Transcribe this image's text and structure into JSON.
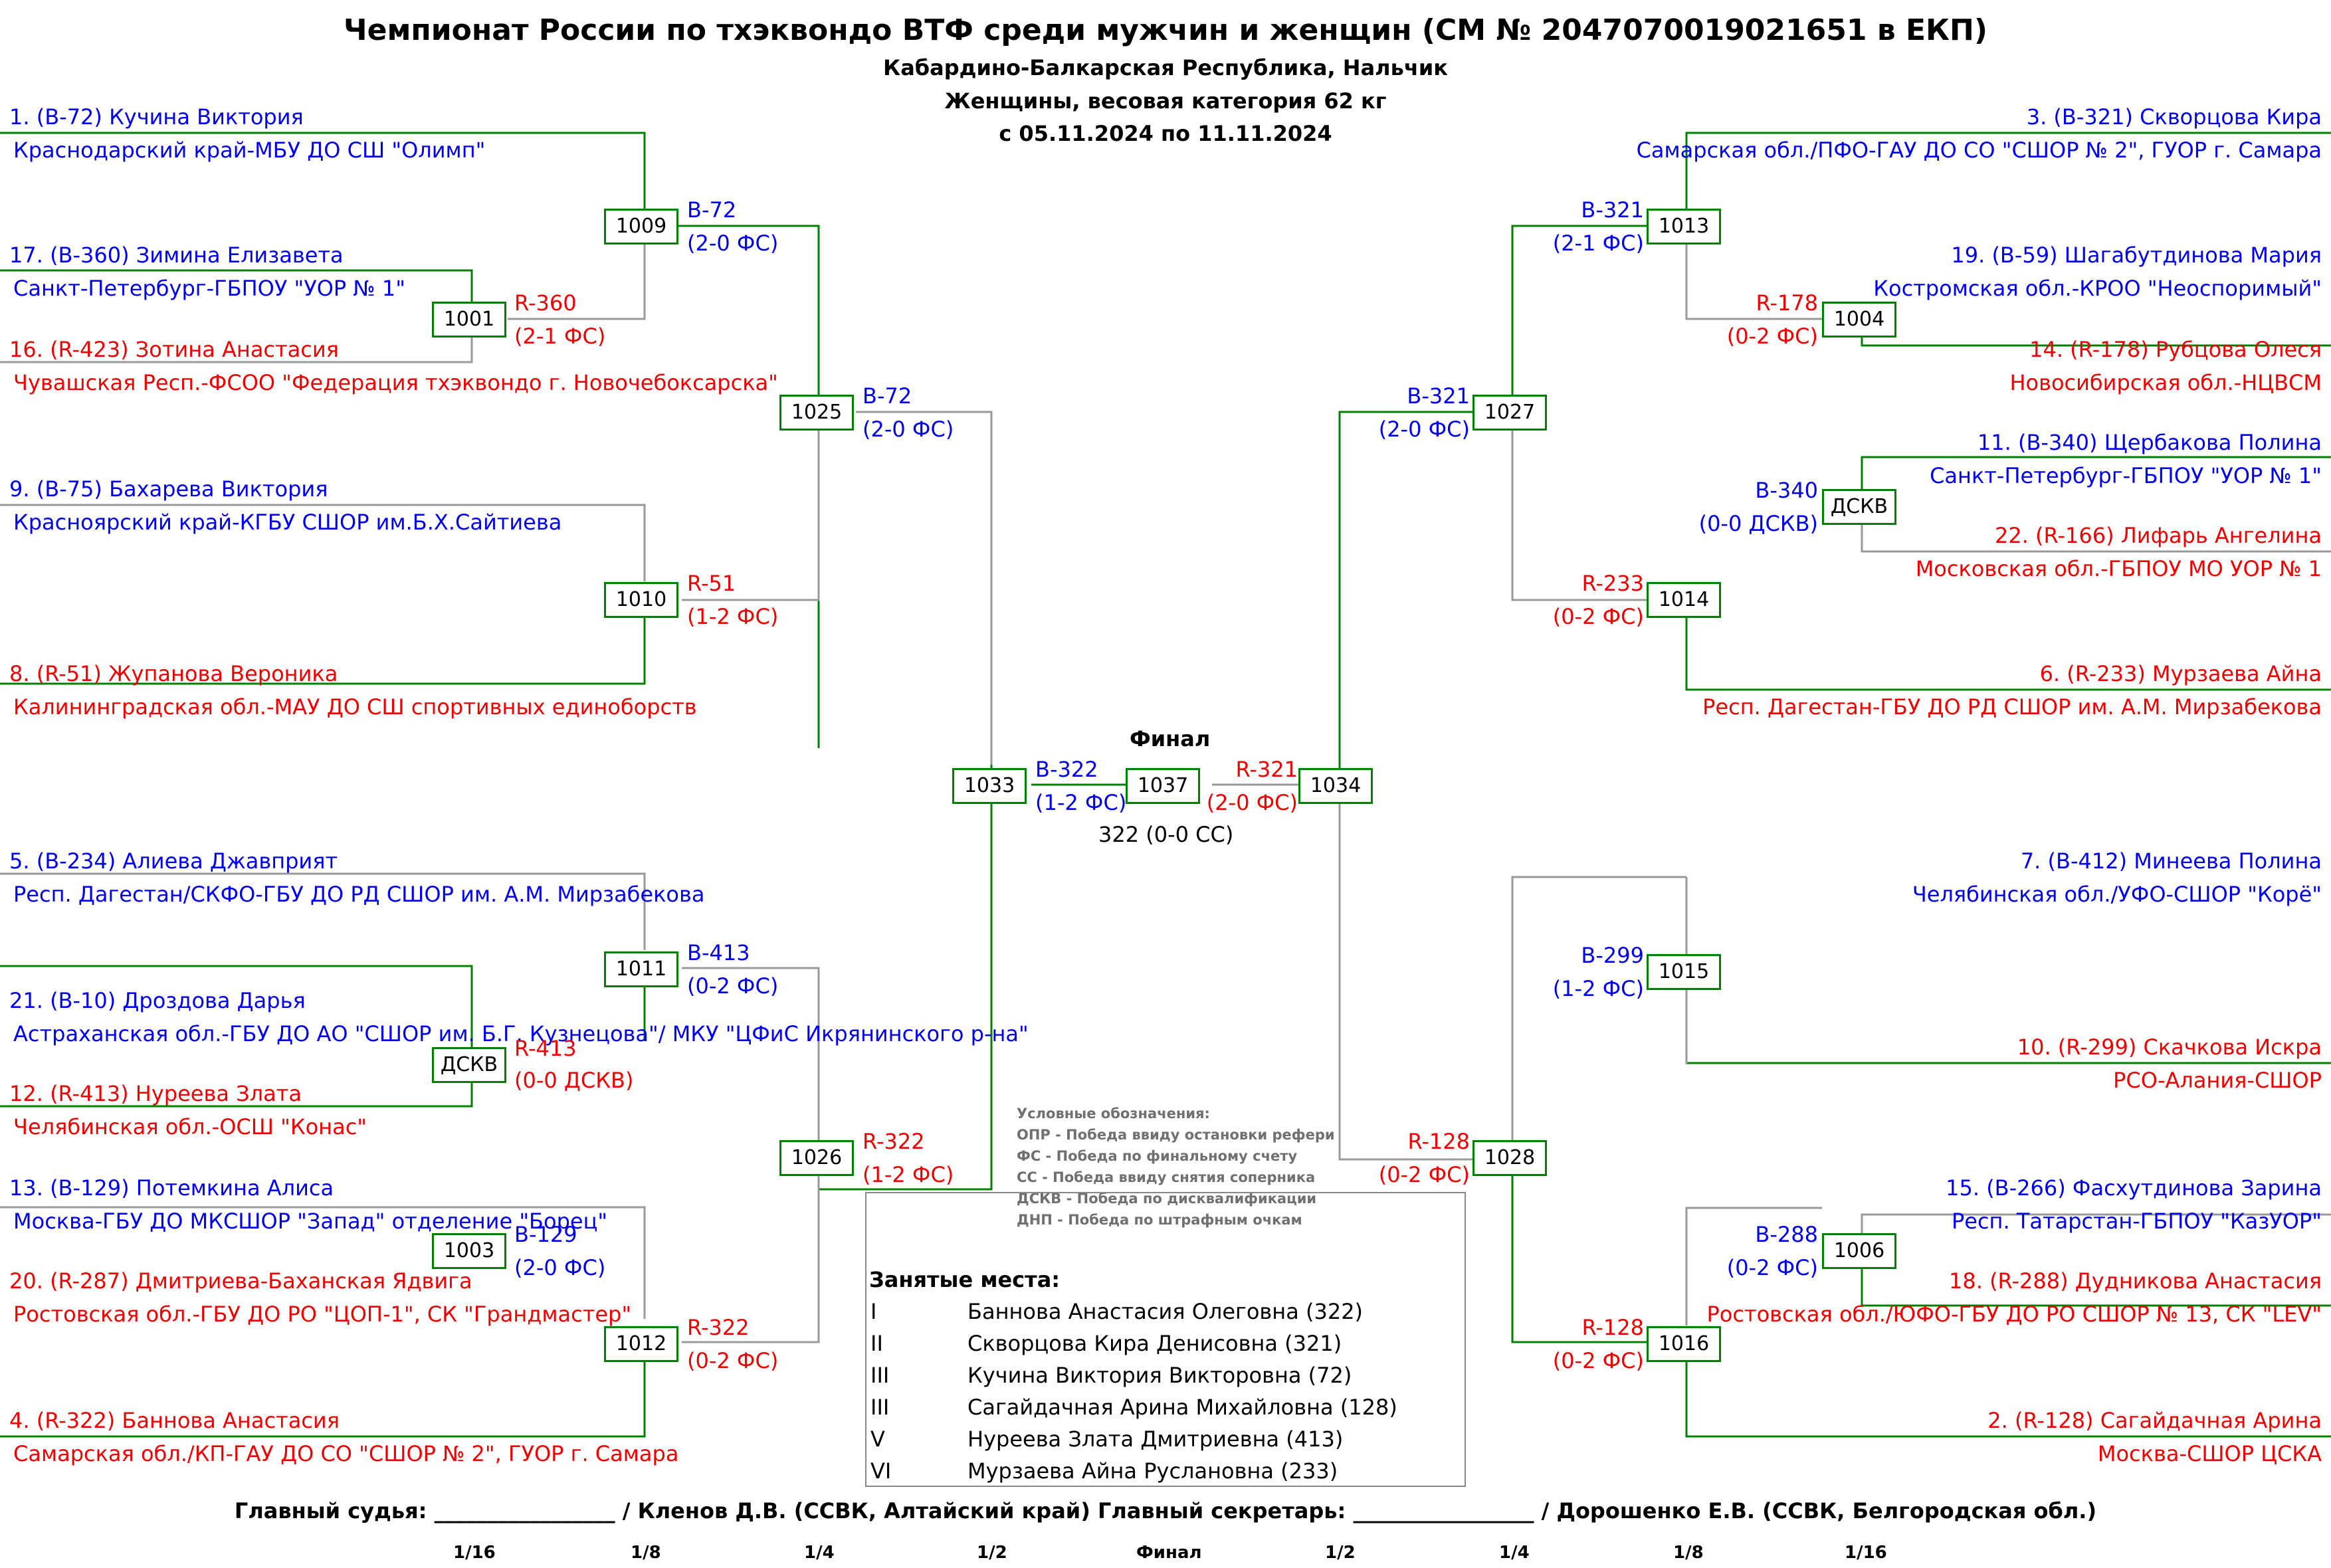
{
  "header": {
    "title": "Чемпионат России по тхэквондо ВТФ среди мужчин и женщин (СМ № 2047070019021651 в ЕКП)",
    "place": "Кабардино-Балкарская Республика, Нальчик",
    "category": "Женщины, весовая категория 62 кг",
    "dates": "с 05.11.2024 по 11.11.2024"
  },
  "left": [
    {
      "n": "1. (B-72) Кучина Виктория",
      "t": "Краснодарский край-МБУ ДО СШ \"Олимп\""
    },
    {
      "n": "17. (B-360) Зимина Елизавета",
      "t": "Санкт-Петербург-ГБПОУ \"УОР № 1\""
    },
    {
      "n": "16. (R-423) Зотина Анастасия",
      "t": "Чувашская Респ.-ФСОО \"Федерация тхэквондо г. Новочебоксарска\""
    },
    {
      "n": "9. (B-75) Бахарева Виктория",
      "t": "Красноярский край-КГБУ  СШОР им.Б.Х.Сайтиева"
    },
    {
      "n": "8. (R-51) Жупанова Вероника",
      "t": "Калининградская обл.-МАУ ДО СШ спортивных единоборств"
    },
    {
      "n": "5. (B-234) Алиева Джавприят",
      "t": "Респ. Дагестан/СКФО-ГБУ ДО РД СШОР им. А.М. Мирзабекова"
    },
    {
      "n": "21. (B-10) Дроздова Дарья",
      "t": "Астраханская обл.-ГБУ ДО АО \"СШОР им. Б.Г. Кузнецова\"/ МКУ \"ЦФиС Икрянинского р-на\""
    },
    {
      "n": "12. (R-413) Нуреева Злата",
      "t": "Челябинская обл.-ОСШ \"Конас\""
    },
    {
      "n": "13. (B-129) Потемкина Алиса",
      "t": "Москва-ГБУ ДО МКСШОР \"Запад\" отделение \"Борец\""
    },
    {
      "n": "20. (R-287) Дмитриева-Баханская Ядвига",
      "t": "Ростовская обл.-ГБУ ДО РО \"ЦОП-1\", СК \"Грандмастер\""
    },
    {
      "n": "4. (R-322) Баннова Анастасия",
      "t": "Самарская обл./КП-ГАУ ДО СО \"СШОР № 2\", ГУОР г. Самара"
    }
  ],
  "right": [
    {
      "n": "3. (B-321) Скворцова Кира",
      "t": "Самарская обл./ПФО-ГАУ ДО СО \"СШОР № 2\", ГУОР г. Самара"
    },
    {
      "n": "19. (B-59) Шагабутдинова Мария",
      "t": "Костромская обл.-КРОО \"Неоспоримый\""
    },
    {
      "n": "14. (R-178) Рубцова Олеся",
      "t": "Новосибирская обл.-НЦВСМ"
    },
    {
      "n": "11. (B-340) Щербакова Полина",
      "t": "Санкт-Петербург-ГБПОУ \"УОР № 1\""
    },
    {
      "n": "22. (R-166) Лифарь Ангелина",
      "t": "Московская обл.-ГБПОУ МО УОР № 1"
    },
    {
      "n": "6. (R-233) Мурзаева Айна",
      "t": "Респ. Дагестан-ГБУ ДО РД СШОР им. А.М. Мирзабекова"
    },
    {
      "n": "7. (B-412) Минеева Полина",
      "t": "Челябинская обл./УФО-СШОР \"Корё\""
    },
    {
      "n": "10. (R-299) Скачкова Искра",
      "t": "РСО-Алания-СШОР"
    },
    {
      "n": "15. (B-266) Фасхутдинова Зарина",
      "t": "Респ. Татарстан-ГБПОУ \"КазУОР\""
    },
    {
      "n": "18. (R-288) Дудникова Анастасия",
      "t": "Ростовская обл./ЮФО-ГБУ ДО РО СШОР № 13, СК \"LEV\""
    },
    {
      "n": "2. (R-128) Сагайдачная Арина",
      "t": "Москва-СШОР ЦСКА"
    }
  ],
  "boxes": {
    "b1009": "1009",
    "b1001": "1001",
    "b1025": "1025",
    "b1010": "1010",
    "b1011": "1011",
    "bL_dskv": "ДСКВ",
    "b1026": "1026",
    "b1003": "1003",
    "b1012": "1012",
    "b1033": "1033",
    "b1037": "1037",
    "b1034": "1034",
    "b1013": "1013",
    "b1004": "1004",
    "b1027": "1027",
    "bR_dskv": "ДСКВ",
    "b1014": "1014",
    "b1015": "1015",
    "b1028": "1028",
    "b1006": "1006",
    "b1016": "1016"
  },
  "results": {
    "r1009": {
      "w": "B-72",
      "s": "(2-0 ФС)"
    },
    "r1001": {
      "w": "R-360",
      "s": "(2-1 ФС)"
    },
    "r1025": {
      "w": "B-72",
      "s": "(2-0 ФС)"
    },
    "r1010": {
      "w": "R-51",
      "s": "(1-2 ФС)"
    },
    "r1011": {
      "w": "B-413",
      "s": "(0-2 ФС)"
    },
    "rLd": {
      "w": "R-413",
      "s": "(0-0 ДСКВ)"
    },
    "r1026": {
      "w": "R-322",
      "s": "(1-2 ФС)"
    },
    "r1003": {
      "w": "B-129",
      "s": "(2-0 ФС)"
    },
    "r1012": {
      "w": "R-322",
      "s": "(0-2 ФС)"
    },
    "r1033": {
      "w": "B-322",
      "s": "(1-2 ФС)"
    },
    "r1034": {
      "w": "R-321",
      "s": "(2-0 ФС)"
    },
    "r1013": {
      "w": "B-321",
      "s": "(2-1 ФС)"
    },
    "r1004": {
      "w": "R-178",
      "s": "(0-2 ФС)"
    },
    "r1027": {
      "w": "B-321",
      "s": "(2-0 ФС)"
    },
    "rRd": {
      "w": "B-340",
      "s": "(0-0 ДСКВ)"
    },
    "r1014": {
      "w": "R-233",
      "s": "(0-2 ФС)"
    },
    "r1015": {
      "w": "B-299",
      "s": "(1-2 ФС)"
    },
    "r1028": {
      "w": "R-128",
      "s": "(0-2 ФС)"
    },
    "r1006": {
      "w": "B-288",
      "s": "(0-2 ФС)"
    },
    "r1016": {
      "w": "R-128",
      "s": "(0-2 ФС)"
    }
  },
  "final": {
    "label": "Финал",
    "result": "322 (0-0 СС)"
  },
  "legend": [
    "Условные обозначения:",
    "ОПР - Победа ввиду остановки рефери",
    "ФС - Победа по финальному счету",
    "СС - Победа ввиду снятия соперника",
    "ДСКВ - Победа по дисквалификации",
    "ДНП - Победа по штрафным очкам"
  ],
  "places": {
    "title": "Занятые места:",
    "rows": [
      {
        "r": "I",
        "n": "Баннова Анастасия Олеговна (322)"
      },
      {
        "r": "II",
        "n": "Скворцова Кира Денисовна (321)"
      },
      {
        "r": "III",
        "n": "Кучина Виктория Викторовна (72)"
      },
      {
        "r": "III",
        "n": "Сагайдачная Арина Михайловна  (128)"
      },
      {
        "r": "V",
        "n": "Нуреева Злата Дмитриевна (413)"
      },
      {
        "r": "VI",
        "n": "Мурзаева Айна Руслановна (233)"
      }
    ]
  },
  "footer": {
    "judge": "Главный судья: _________________ / Кленов Д.В. (ССВК, Алтайский край)   Главный секретарь: _________________ / Дорошенко Е.В. (ССВК, Белгородская обл.)"
  },
  "rounds": [
    "1/16",
    "1/8",
    "1/4",
    "1/2",
    "Финал",
    "1/2",
    "1/4",
    "1/8",
    "1/16"
  ]
}
